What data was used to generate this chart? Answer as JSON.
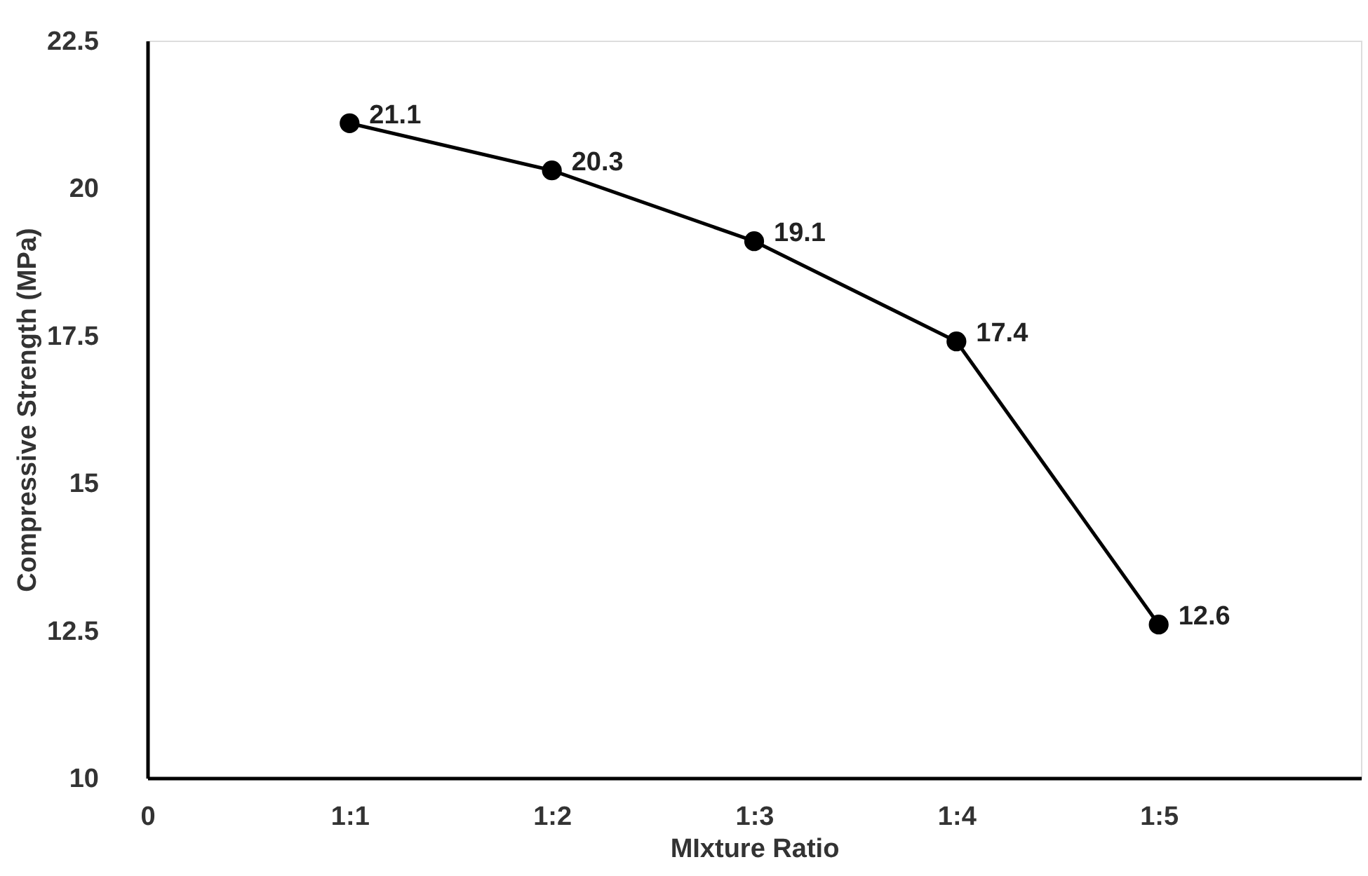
{
  "chart_data": {
    "type": "line",
    "xlabel": "MIxture Ratio",
    "ylabel": "Compressive Strength (MPa)",
    "categories": [
      "0",
      "1:1",
      "1:2",
      "1:3",
      "1:4",
      "1:5"
    ],
    "series": [
      {
        "color": "#000000",
        "values": [
          null,
          21.1,
          20.3,
          19.1,
          17.4,
          12.6
        ]
      }
    ],
    "ylim": [
      10,
      22.5
    ],
    "yticks": [
      10,
      12.5,
      15,
      17.5,
      20,
      22.5
    ],
    "data_labels": true,
    "marker": "circle",
    "line_style": "solid",
    "grid": false,
    "legend": false
  }
}
